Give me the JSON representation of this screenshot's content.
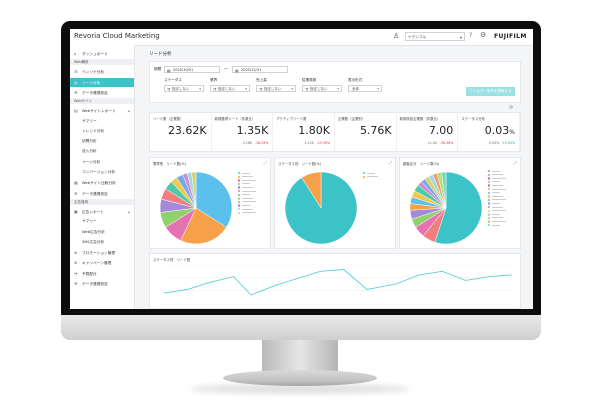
{
  "app": {
    "title": "Revoria Cloud Marketing",
    "brand": "FUJIFILM",
    "user_select": "ナデシコル"
  },
  "sidebar": {
    "items": [
      {
        "type": "item",
        "icon": "⌂",
        "label": "ダッシュボード",
        "icon_name": "dashboard-icon"
      },
      {
        "type": "section",
        "label": "Web解析"
      },
      {
        "type": "item",
        "icon": "☰",
        "label": "ベンソナ分析",
        "icon_name": "analysis-icon"
      },
      {
        "type": "item",
        "icon": "◎",
        "label": "リード分析",
        "icon_name": "lead-icon",
        "active": true
      },
      {
        "type": "item",
        "icon": "⚙",
        "label": "データ連携設定",
        "icon_name": "data-link-icon"
      },
      {
        "type": "section",
        "label": "Webサイト"
      },
      {
        "type": "item",
        "icon": "▤",
        "label": "Webサイトレポート",
        "icon_name": "report-icon",
        "caret": "▴"
      },
      {
        "type": "sub",
        "label": "サマリー"
      },
      {
        "type": "sub",
        "label": "トレンド分析"
      },
      {
        "type": "sub",
        "label": "訪問分析"
      },
      {
        "type": "sub",
        "label": "流入分析"
      },
      {
        "type": "sub",
        "label": "ページ分析"
      },
      {
        "type": "sub",
        "label": "コンバージョン分析"
      },
      {
        "type": "item",
        "icon": "▦",
        "label": "Webサイト比較分析",
        "icon_name": "compare-icon"
      },
      {
        "type": "item",
        "icon": "⚙",
        "label": "データ連携設定",
        "icon_name": "settings-icon"
      },
      {
        "type": "section",
        "label": "広告運用"
      },
      {
        "type": "item",
        "icon": "▣",
        "label": "広告レポート",
        "icon_name": "ad-report-icon",
        "caret": "▴"
      },
      {
        "type": "sub",
        "label": "サマリー"
      },
      {
        "type": "sub",
        "label": "Web広告分析"
      },
      {
        "type": "sub",
        "label": "SNS広告分析"
      },
      {
        "type": "item",
        "icon": "⊕",
        "label": "プロモーション管理",
        "icon_name": "promotion-icon"
      },
      {
        "type": "item",
        "icon": "⊕",
        "label": "キャンペーン管理",
        "icon_name": "campaign-icon"
      },
      {
        "type": "item",
        "icon": "◔",
        "label": "予算配分",
        "icon_name": "budget-icon"
      },
      {
        "type": "item",
        "icon": "⚙",
        "label": "データ連携設定",
        "icon_name": "settings-icon-2"
      }
    ]
  },
  "main": {
    "title": "リード分析",
    "filters": {
      "period_label": "期間",
      "date_from": "2020/10/01",
      "date_to": "2020/12/31",
      "selects": [
        {
          "label": "ステータス",
          "value": "指定しない"
        },
        {
          "label": "業界",
          "value": "指定しない"
        },
        {
          "label": "売上高",
          "value": "指定しない"
        },
        {
          "label": "従業員数",
          "value": "指定しない"
        },
        {
          "label": "表示形式",
          "value": "全体"
        }
      ],
      "submit_label": "フィルター条件を適用する"
    },
    "kpis": [
      {
        "label": "リード数（企業数）",
        "value": "23.62K",
        "sub_left": "",
        "sub_right": ""
      },
      {
        "label": "新規獲得リード（件数比）",
        "value": "1.35K",
        "sub_left": "2.18K",
        "sub_right": "-38.25%",
        "dir": "neg"
      },
      {
        "label": "アクティブリード数",
        "value": "1.80K",
        "sub_left": "2.13K",
        "sub_right": "-15.30%",
        "dir": "neg"
      },
      {
        "label": "企業数（企業別）",
        "value": "5.76K",
        "sub_left": "",
        "sub_right": ""
      },
      {
        "label": "新規商談企業数（件数比）",
        "value": "7.00",
        "sub_left": "11.00",
        "sub_right": "-36.36%",
        "dir": "neg"
      },
      {
        "label": "ステータス分布",
        "value": "0.03",
        "unit": "%",
        "sub_left": "0.00%",
        "sub_right": "+0.03%",
        "dir": "pos"
      }
    ],
    "pie_panels": [
      {
        "title": "業界別　リード数(%)"
      },
      {
        "title": "ステータス別　リード数(%)"
      },
      {
        "title": "顧客区分　リード数(%)"
      }
    ],
    "line_panel": {
      "title": "ステータス別　リード数"
    }
  },
  "chart_data": [
    {
      "type": "pie",
      "title": "業界別　リード数(%)",
      "values": [
        34,
        23,
        9,
        7,
        6,
        5,
        4,
        3,
        3,
        2,
        2,
        2
      ],
      "colors": [
        "#5bc0eb",
        "#f6a14a",
        "#e573b4",
        "#8fd16a",
        "#a48ad9",
        "#f37e7e",
        "#4fc9a6",
        "#f0c84e",
        "#7aa7e8",
        "#c98bd6",
        "#9fd8e0",
        "#d6d36a"
      ]
    },
    {
      "type": "pie",
      "title": "ステータス別　リード数(%)",
      "values": [
        91,
        9
      ],
      "colors": [
        "#3cc3c8",
        "#f6a14a"
      ]
    },
    {
      "type": "pie",
      "title": "顧客区分　リード数(%)",
      "values": [
        55,
        6,
        5,
        4,
        4,
        3,
        3,
        3,
        3,
        2,
        2,
        2,
        2,
        2,
        2,
        2
      ],
      "colors": [
        "#3cc3c8",
        "#f37e7e",
        "#e573b4",
        "#8fd16a",
        "#a48ad9",
        "#f6a14a",
        "#5bc0eb",
        "#f0c84e",
        "#4fc9a6",
        "#c98bd6",
        "#7aa7e8",
        "#d6d36a",
        "#9fd8e0",
        "#e8a07a",
        "#b5e06a",
        "#7bd6b9"
      ]
    },
    {
      "type": "line",
      "title": "ステータス別　リード数",
      "color": "#5bd0d4",
      "x": [
        0,
        8,
        16,
        24,
        30,
        38,
        46,
        54,
        62,
        70,
        80,
        88,
        96,
        104,
        112,
        120
      ],
      "y": [
        6,
        8,
        12,
        15,
        5,
        10,
        14,
        18,
        19,
        8,
        11,
        16,
        18,
        13,
        15,
        16
      ],
      "ylim": [
        0,
        22
      ]
    }
  ]
}
